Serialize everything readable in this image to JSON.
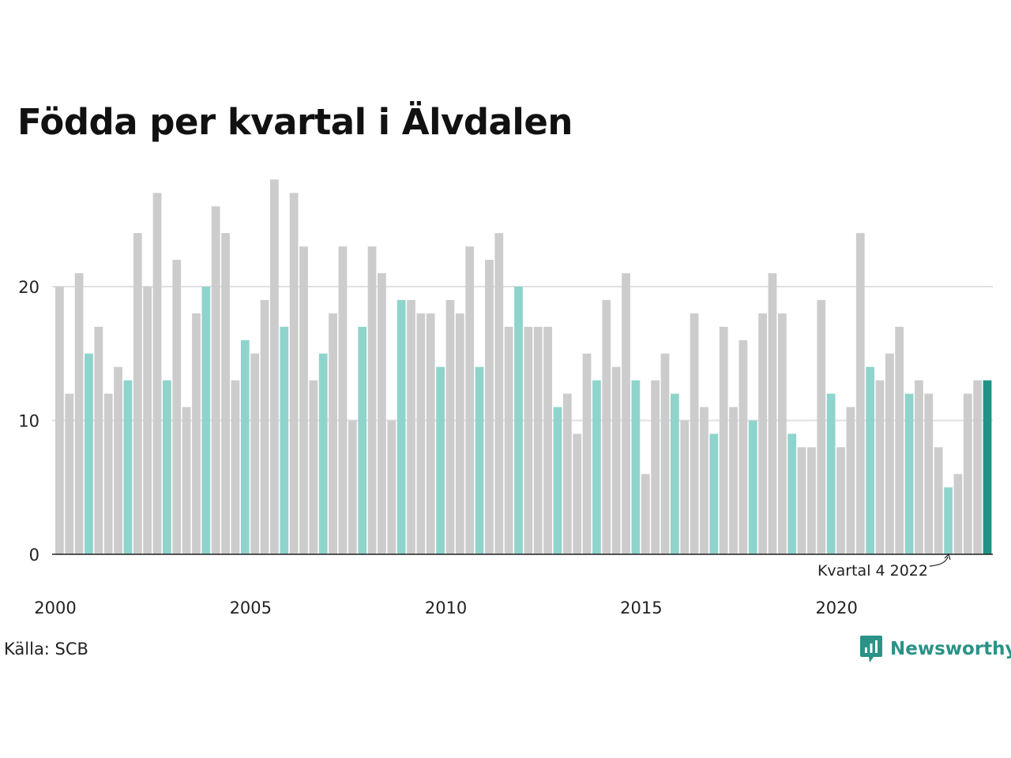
{
  "chart_data": {
    "type": "bar",
    "title": "Födda per kvartal i Älvdalen",
    "ylim": [
      0,
      30
    ],
    "yticks": [
      0,
      10,
      20
    ],
    "grid": true,
    "start_year": 2000,
    "x_tick_labels": [
      "2000",
      "2005",
      "2010",
      "2015",
      "2020"
    ],
    "values": [
      20,
      12,
      21,
      15,
      17,
      12,
      14,
      13,
      24,
      20,
      27,
      13,
      22,
      11,
      18,
      20,
      26,
      24,
      13,
      16,
      15,
      19,
      28,
      17,
      27,
      23,
      13,
      15,
      18,
      23,
      10,
      17,
      23,
      21,
      10,
      19,
      19,
      18,
      18,
      14,
      19,
      18,
      23,
      14,
      22,
      24,
      17,
      20,
      17,
      17,
      17,
      11,
      12,
      9,
      15,
      13,
      19,
      14,
      21,
      13,
      6,
      13,
      15,
      12,
      10,
      18,
      11,
      9,
      17,
      11,
      16,
      10,
      18,
      21,
      18,
      9,
      8,
      8,
      19,
      12,
      8,
      11,
      24,
      14,
      13,
      15,
      17,
      12,
      13,
      12,
      8,
      5,
      6,
      12,
      13,
      13
    ],
    "highlight_quarter": 4,
    "annotation": "Kvartal 4 2022",
    "colors": {
      "other": "#cccccc",
      "same_quarter": "#8fd4cc",
      "latest": "#1f9486",
      "grid": "#e0e0e0",
      "axis": "#222222",
      "text": "#222222"
    }
  },
  "source": "Källa: SCB",
  "brand": {
    "name": "Newsworthy",
    "icon": "newsworthy-logo-icon"
  }
}
